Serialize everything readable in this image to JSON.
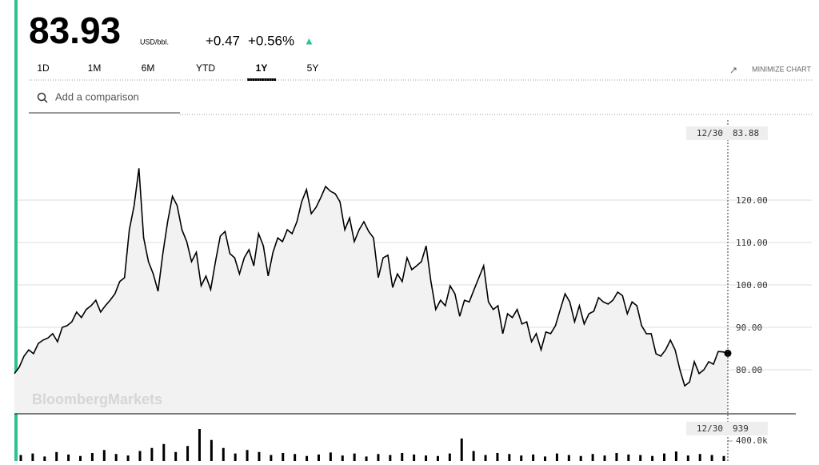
{
  "header": {
    "price": "83.93",
    "unit": "USD/bbl.",
    "change": "+0.47",
    "change_pct": "+0.56%",
    "arrow": "▲"
  },
  "tabs": {
    "items": [
      "1D",
      "1M",
      "6M",
      "YTD",
      "1Y",
      "5Y"
    ],
    "active_index": 4
  },
  "minimize": "MINIMIZE CHART",
  "search": {
    "placeholder": "Add a comparison"
  },
  "watermark": "BloombergMarkets",
  "chart_data": [
    {
      "type": "line",
      "color": "#000000",
      "values": [
        79.1,
        80.6,
        83.2,
        84.7,
        83.8,
        86.2,
        87,
        87.5,
        88.5,
        86.6,
        90,
        90.4,
        91.3,
        93.6,
        92.3,
        94.2,
        95.1,
        96.4,
        93.6,
        95.1,
        96.4,
        97.9,
        100.8,
        101.7,
        113,
        118.7,
        127.5,
        111.1,
        105.5,
        102.6,
        98.5,
        107.4,
        114.9,
        120.9,
        118.7,
        113,
        110.2,
        105.5,
        107.7,
        99.8,
        102.1,
        98.9,
        105.5,
        111.5,
        112.6,
        107.4,
        106.4,
        102.6,
        106.4,
        108.3,
        104.5,
        112.1,
        109.2,
        102.1,
        107.7,
        111.1,
        110.2,
        113,
        112.1,
        114.9,
        119.6,
        122.5,
        116.8,
        118.3,
        120.6,
        123.2,
        122.1,
        121.5,
        119.6,
        113,
        115.8,
        110.2,
        113,
        114.9,
        112.6,
        111.1,
        101.7,
        106.4,
        107,
        99.4,
        102.6,
        100.8,
        106.4,
        103.6,
        104.5,
        105.5,
        109.2,
        100.8,
        94.2,
        96.4,
        95.1,
        99.8,
        97.9,
        92.6,
        96.4,
        96,
        98.9,
        101.7,
        104.5,
        96,
        94.2,
        95.1,
        88.5,
        93.2,
        92.3,
        94.2,
        90.8,
        91.3,
        86.6,
        88.5,
        84.7,
        88.9,
        88.5,
        90.4,
        94.2,
        97.9,
        96,
        91.3,
        95.1,
        90.8,
        93.2,
        93.8,
        97,
        96,
        95.5,
        96.4,
        98.3,
        97.5,
        93.2,
        96,
        95.1,
        90.4,
        88.5,
        88.5,
        83.8,
        83.2,
        84.7,
        87,
        84.7,
        80,
        76.2,
        77.1,
        81.9,
        79.1,
        80,
        81.9,
        81.3,
        84.3,
        84.2,
        83.88
      ],
      "ylim": [
        70,
        140
      ],
      "yticks": [
        {
          "value": 80,
          "label": "80.00"
        },
        {
          "value": 90,
          "label": "90.00"
        },
        {
          "value": 100,
          "label": "100.00"
        },
        {
          "value": 110,
          "label": "110.00"
        },
        {
          "value": 120,
          "label": "120.00"
        }
      ],
      "grid": true,
      "cursor_date": "12/30",
      "cursor_value": "83.88"
    },
    {
      "type": "bar",
      "color": "#000000",
      "values": [
        120000,
        150000,
        90000,
        180000,
        130000,
        100000,
        160000,
        220000,
        140000,
        110000,
        200000,
        260000,
        340000,
        180000,
        300000,
        640000,
        420000,
        260000,
        150000,
        220000,
        180000,
        120000,
        160000,
        140000,
        100000,
        130000,
        170000,
        110000,
        150000,
        90000,
        140000,
        120000,
        160000,
        130000,
        110000,
        100000,
        150000,
        450000,
        200000,
        120000,
        160000,
        140000,
        110000,
        130000,
        90000,
        150000,
        120000,
        100000,
        140000,
        110000,
        160000,
        130000,
        120000,
        100000,
        150000,
        190000,
        110000,
        140000,
        120000,
        100000
      ],
      "ylim": [
        0,
        896000
      ],
      "yticks": [
        {
          "value": 400000,
          "label": "400.0k"
        }
      ],
      "cursor_date": "12/30",
      "cursor_value": "939"
    }
  ]
}
